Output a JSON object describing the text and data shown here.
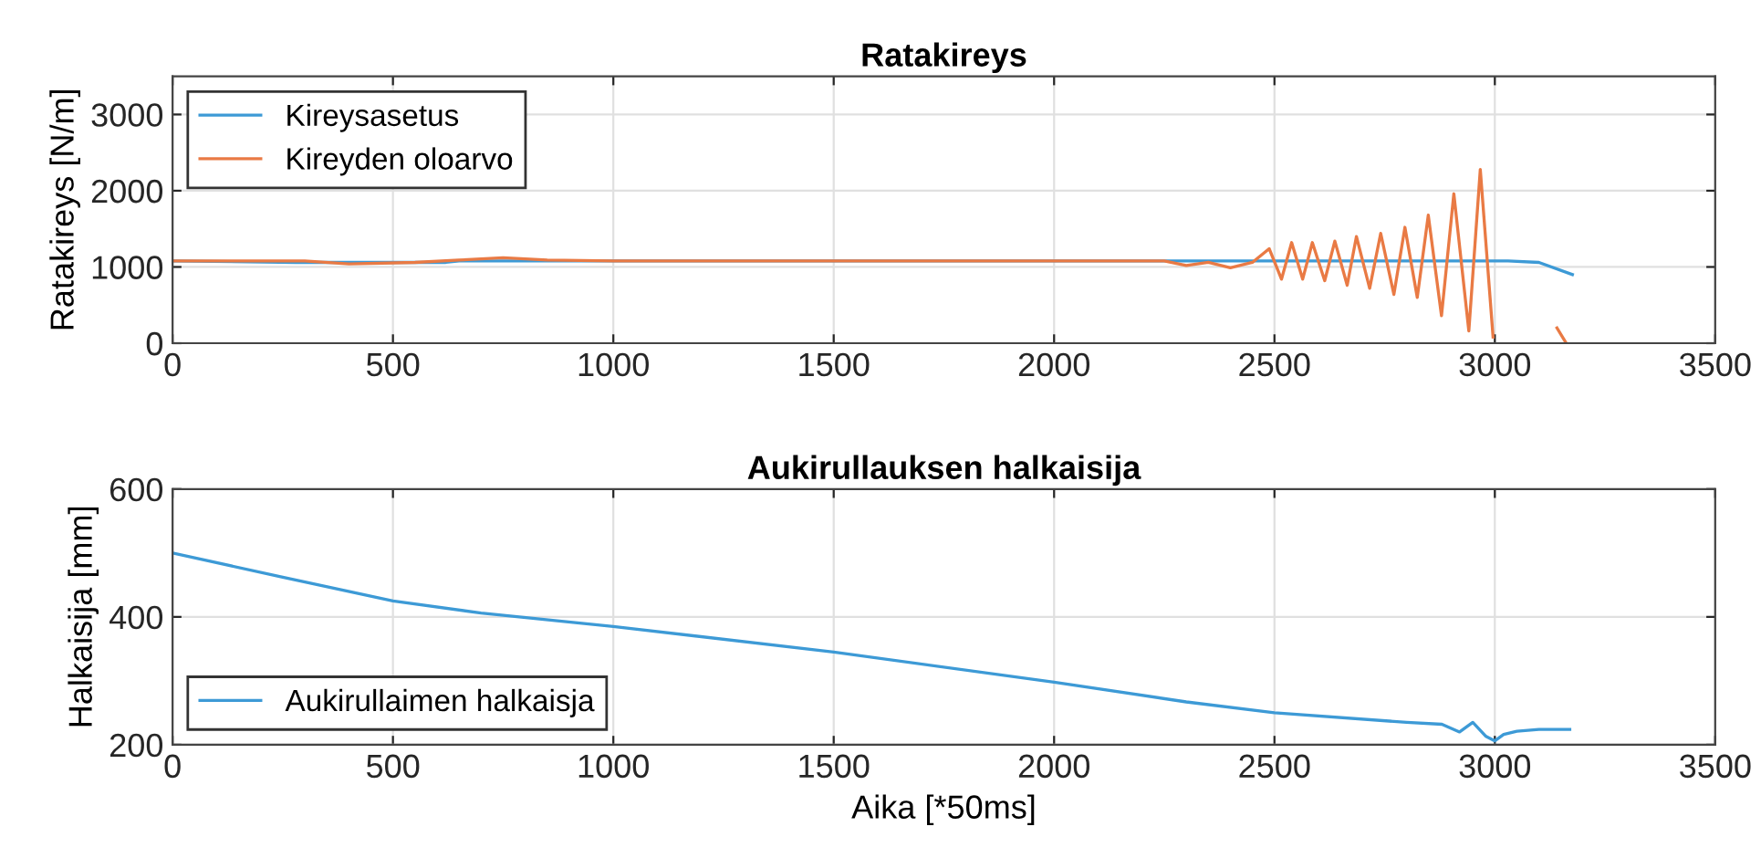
{
  "chart_data": [
    {
      "type": "line",
      "title": "Ratakireys",
      "ylabel": "Ratakireys [N/m]",
      "xlim": [
        0,
        3500
      ],
      "ylim": [
        0,
        3500
      ],
      "xticks": [
        0,
        500,
        1000,
        1500,
        2000,
        2500,
        3000,
        3500
      ],
      "yticks": [
        0,
        1000,
        2000,
        3000
      ],
      "grid": true,
      "legend": "top left",
      "series": [
        {
          "name": "Kireysasetus",
          "color": "#3d9ad6",
          "x": [
            0,
            280,
            620,
            650,
            3030,
            3100,
            3176
          ],
          "values": [
            1080,
            1060,
            1060,
            1080,
            1080,
            1060,
            900
          ]
        },
        {
          "name": "Kireyden oloarvo",
          "color": "#e97a44",
          "x": [
            0,
            300,
            400,
            550,
            650,
            750,
            850,
            1000,
            2250,
            2300,
            2350,
            2400,
            2450,
            2488,
            2516,
            2539,
            2564,
            2586,
            2614,
            2637,
            2665,
            2686,
            2716,
            2741,
            2771,
            2796,
            2824,
            2849,
            2879,
            2907,
            2941,
            2967,
            2996,
            3035,
            3100,
            3141,
            3162
          ],
          "values": [
            1080,
            1080,
            1040,
            1060,
            1090,
            1120,
            1090,
            1080,
            1080,
            1020,
            1060,
            990,
            1060,
            1240,
            840,
            1320,
            840,
            1320,
            820,
            1340,
            760,
            1400,
            720,
            1440,
            640,
            1520,
            600,
            1680,
            360,
            1960,
            160,
            2280,
            80,
            null,
            null,
            200,
            0
          ]
        }
      ]
    },
    {
      "type": "line",
      "title": "Aukirullauksen halkaisija",
      "xlabel": "Aika [*50ms]",
      "ylabel": "Halkaisija [mm]",
      "xlim": [
        0,
        3500
      ],
      "ylim": [
        200,
        600
      ],
      "xticks": [
        0,
        500,
        1000,
        1500,
        2000,
        2500,
        3000,
        3500
      ],
      "yticks": [
        200,
        400,
        600
      ],
      "grid": true,
      "legend": "bottom left",
      "series": [
        {
          "name": "Aukirullaimen halkaisja",
          "color": "#3d9ad6",
          "x": [
            0,
            250,
            500,
            700,
            1000,
            1500,
            2000,
            2300,
            2500,
            2800,
            2880,
            2920,
            2950,
            2980,
            3000,
            3020,
            3050,
            3100,
            3170
          ],
          "values": [
            500,
            462,
            425,
            406,
            385,
            345,
            298,
            267,
            250,
            235,
            232,
            220,
            235,
            213,
            206,
            216,
            221,
            224,
            224
          ]
        }
      ]
    }
  ]
}
